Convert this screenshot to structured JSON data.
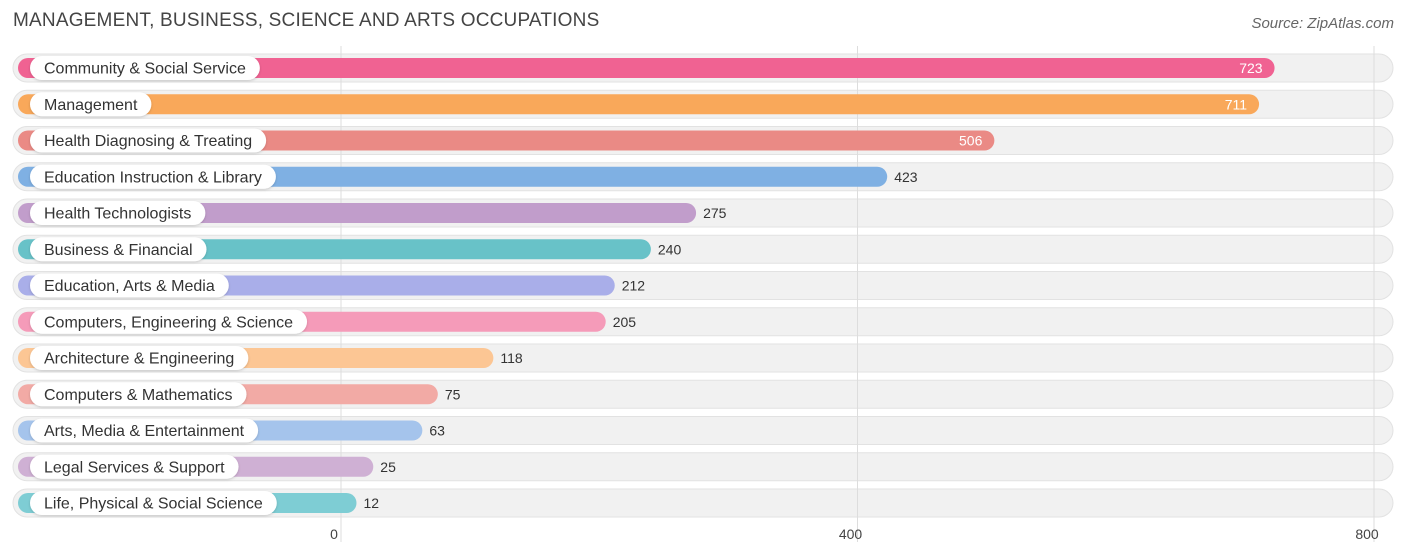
{
  "header": {
    "title": "MANAGEMENT, BUSINESS, SCIENCE AND ARTS OCCUPATIONS",
    "source": "Source: ZipAtlas.com"
  },
  "chart_data": {
    "type": "bar",
    "orientation": "horizontal",
    "categories": [
      "Community & Social Service",
      "Management",
      "Health Diagnosing & Treating",
      "Education Instruction & Library",
      "Health Technologists",
      "Business & Financial",
      "Education, Arts & Media",
      "Computers, Engineering & Science",
      "Architecture & Engineering",
      "Computers & Mathematics",
      "Arts, Media & Entertainment",
      "Legal Services & Support",
      "Life, Physical & Social Science"
    ],
    "values": [
      723,
      711,
      506,
      423,
      275,
      240,
      212,
      205,
      118,
      75,
      63,
      25,
      12
    ],
    "colors": [
      "#f06292",
      "#f9a85a",
      "#ea8a85",
      "#7fb0e3",
      "#c19dcb",
      "#68c2c8",
      "#a9aee9",
      "#f59bb9",
      "#fcc694",
      "#f2aaa5",
      "#a5c4ec",
      "#cfb0d4",
      "#7ecdd4"
    ],
    "x_ticks": [
      0,
      400,
      800
    ],
    "xlim": [
      0,
      800
    ],
    "grid": true,
    "legend": "none"
  }
}
